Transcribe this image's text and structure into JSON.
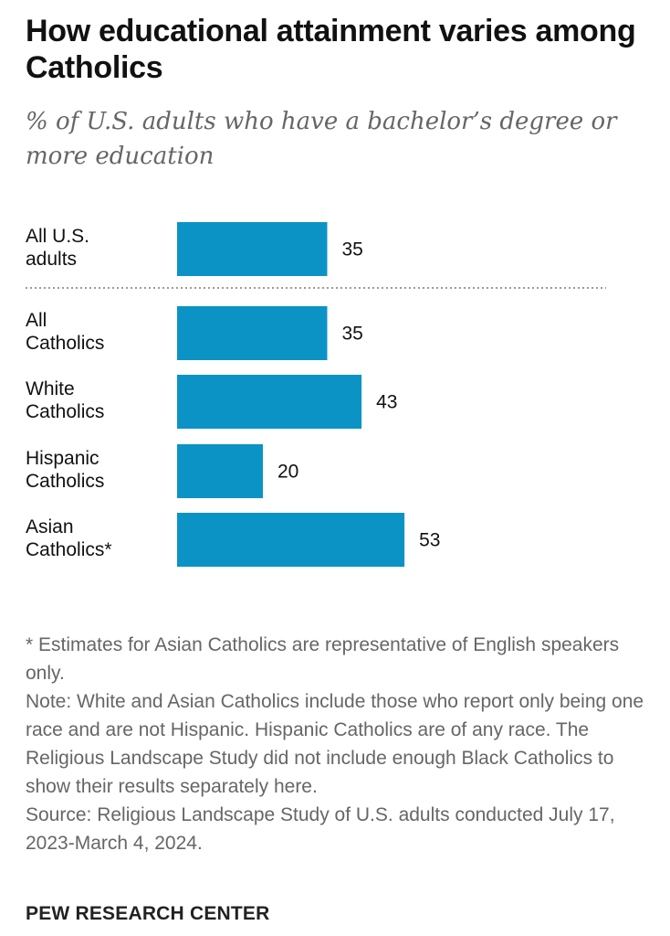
{
  "chart_data": {
    "type": "bar",
    "orientation": "horizontal",
    "title": "How educational attainment varies among Catholics",
    "subtitle": "% of U.S. adults who have a bachelor’s degree or more education",
    "categories": [
      [
        "All U.S.",
        "adults"
      ],
      [
        "All",
        "Catholics"
      ],
      [
        "White",
        "Catholics"
      ],
      [
        "Hispanic",
        "Catholics"
      ],
      [
        "Asian",
        "Catholics*"
      ]
    ],
    "values": [
      35,
      35,
      43,
      20,
      53
    ],
    "xlim": [
      0,
      100
    ],
    "separator_after_index": 0,
    "bar_color": "#0b93c6",
    "xlabel": "",
    "ylabel": ""
  },
  "notes": {
    "asterisk": "* Estimates for Asian Catholics are representative of English speakers only.",
    "note": "Note: White and Asian Catholics include those who report only being one race and are not Hispanic. Hispanic Catholics are of any race. The Religious Landscape Study did not include enough Black Catholics to show their results separately here.",
    "source": "Source: Religious Landscape Study of U.S. adults conducted July 17, 2023-March 4, 2024."
  },
  "brand": "PEW RESEARCH CENTER"
}
